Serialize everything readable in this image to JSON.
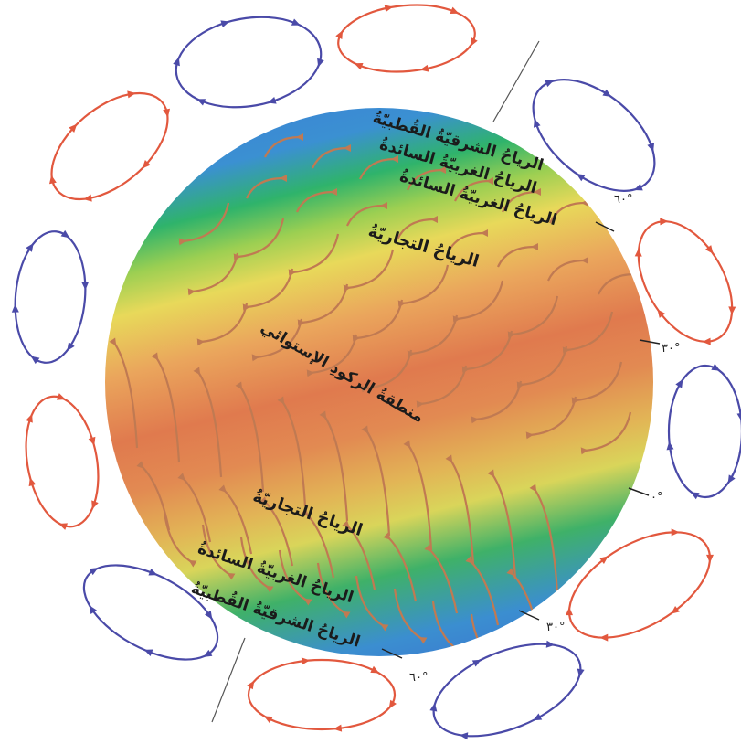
{
  "figure": {
    "colors": {
      "red_cell": "#e2583e",
      "blue_cell": "#4a4aa8",
      "wind_arrow": "#c07a52",
      "band_polar": "#3b7fd6",
      "band_temperate": "#2fb36b",
      "band_subtropic": "#e8d95a",
      "band_equator": "#e07a4e"
    },
    "labels": {
      "north_polar_easterlies": "الرياحُ الشرقيّةُ القُطبيّةُ",
      "north_westerlies": "الرياحُ الغربيّةُ السائدةُ",
      "north_trades": "الرياحُ التجاريّةُ",
      "doldrums": "منطقةُ الركودِ الإستوائي",
      "south_trades": "الرياحُ التجاريّةُ",
      "south_westerlies": "الرياحُ الغربيّةُ السائدةُ",
      "south_polar_easterlies": "الرياحُ الشرقيّةُ القُطبيّةُ"
    },
    "latitudes": {
      "n60": "٦٠°",
      "n30": "٣٠°",
      "eq": "٠°",
      "s30": "٣٠°",
      "s60": "٦٠°"
    }
  }
}
